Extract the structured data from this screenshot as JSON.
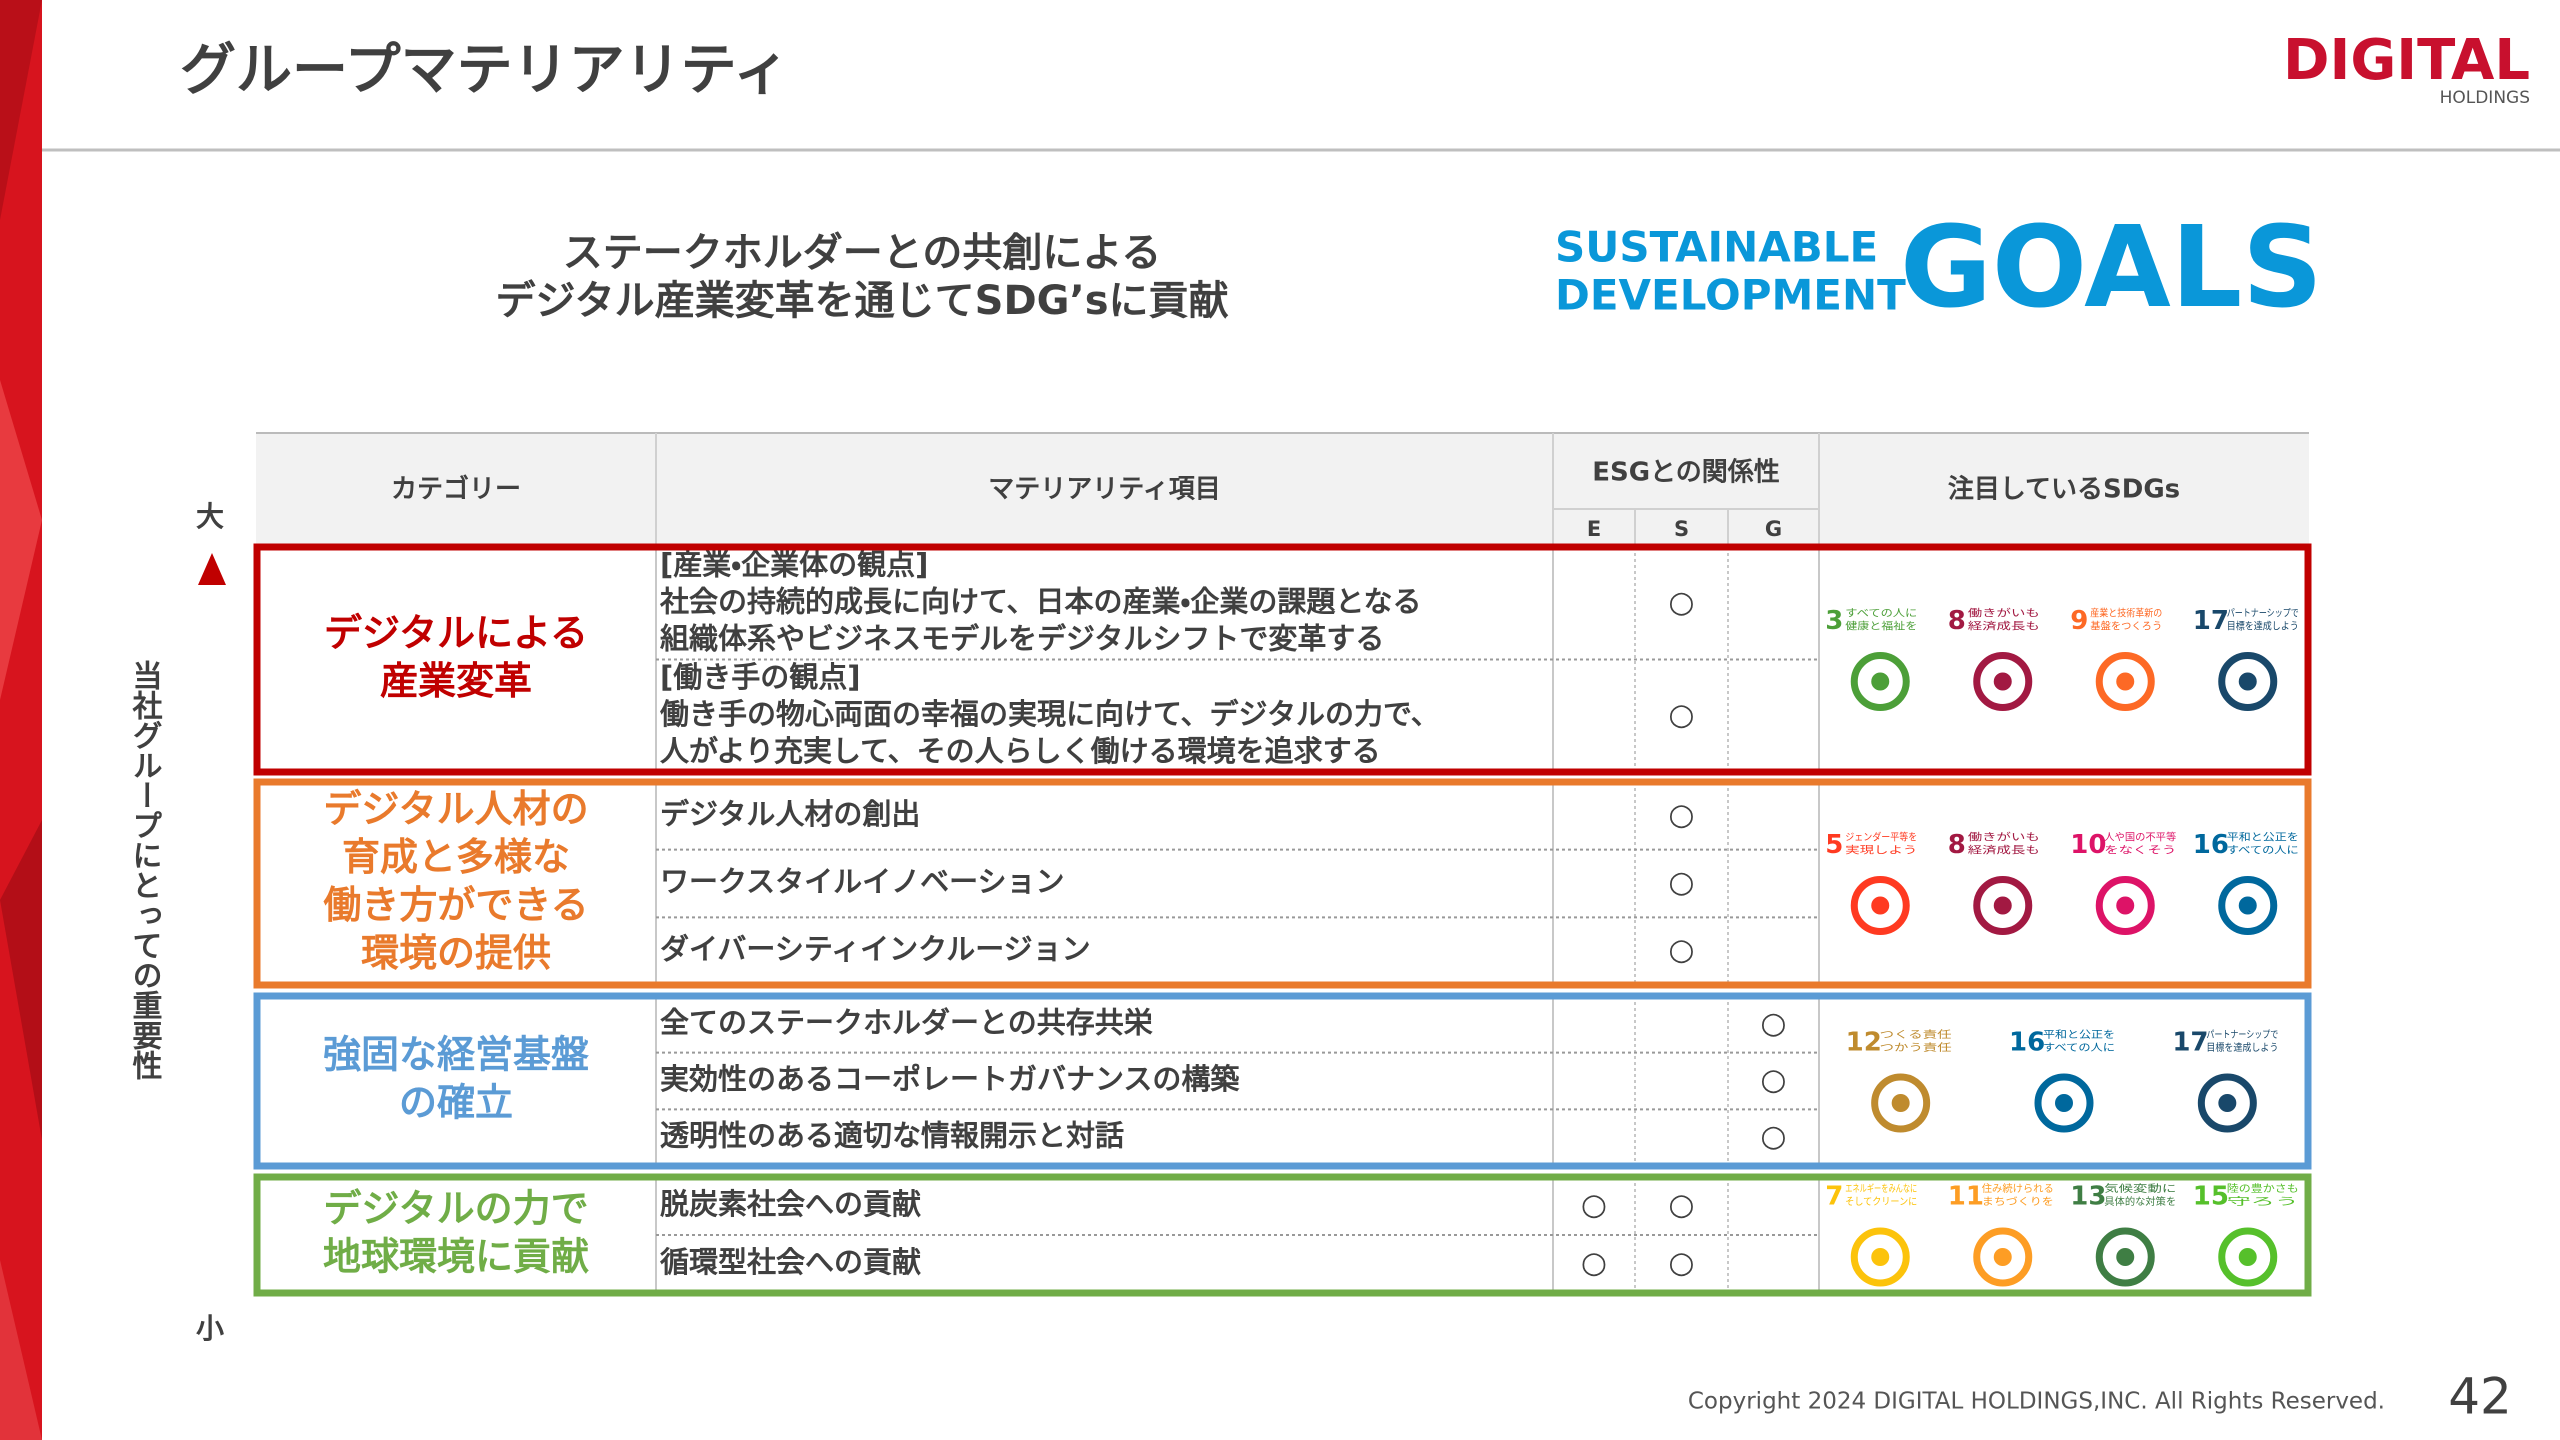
{
  "header": {
    "title": "グループマテリアリティ",
    "logo": {
      "name": "DIGITAL",
      "sub": "HOLDINGS"
    }
  },
  "tagline": [
    "ステークホルダーとの共創による",
    "デジタル産業変革を通じてSDG’sに貢献"
  ],
  "sdgs_logo": {
    "line1": "SUSTAINABLE",
    "line2": "DEVELOPMENT",
    "goals": "GOALS"
  },
  "axis": {
    "label": "当社グループにとっての重要性",
    "high": "大",
    "low": "小"
  },
  "table": {
    "headers": {
      "category": "カテゴリー",
      "item": "マテリアリティ項目",
      "esg": "ESGとの関係性",
      "esg_columns": [
        "E",
        "S",
        "G"
      ],
      "sdgs": "注目しているSDGs"
    },
    "mark": "○",
    "groups": [
      {
        "category": [
          "デジタルによる",
          "産業変革"
        ],
        "color": "#c00000",
        "items": [
          {
            "lines": [
              "[産業・企業体の観点]",
              "社会の持続的成長に向けて、日本の産業・企業の課題となる",
              "組織体系やビジネスモデルをデジタルシフトで変革する"
            ],
            "esg": [
              "S"
            ]
          },
          {
            "lines": [
              "[働き手の観点]",
              "働き手の物心両面の幸福の実現に向けて、デジタルの力で、",
              "人がより充実して、その人らしく働ける環境を追求する"
            ],
            "esg": [
              "S"
            ]
          }
        ],
        "sdgs": [
          {
            "number": "3",
            "label": [
              "すべての人に",
              "健康と福祉を"
            ],
            "color": "#4c9f38"
          },
          {
            "number": "8",
            "label": [
              "働きがいも",
              "経済成長も"
            ],
            "color": "#a21942"
          },
          {
            "number": "9",
            "label": [
              "産業と技術革新の",
              "基盤をつくろう"
            ],
            "color": "#fd6925"
          },
          {
            "number": "17",
            "label": [
              "パートナーシップで",
              "目標を達成しよう"
            ],
            "color": "#19486a"
          }
        ]
      },
      {
        "category": [
          "デジタル人材の",
          "育成と多様な",
          "働き方ができる",
          "環境の提供"
        ],
        "color": "#e97a2c",
        "items": [
          {
            "lines": [
              "デジタル人材の創出"
            ],
            "esg": [
              "S"
            ]
          },
          {
            "lines": [
              "ワークスタイルイノベーション"
            ],
            "esg": [
              "S"
            ]
          },
          {
            "lines": [
              "ダイバーシティインクルージョン"
            ],
            "esg": [
              "S"
            ]
          }
        ],
        "sdgs": [
          {
            "number": "5",
            "label": [
              "ジェンダー平等を",
              "実現しよう"
            ],
            "color": "#ff3a21"
          },
          {
            "number": "8",
            "label": [
              "働きがいも",
              "経済成長も"
            ],
            "color": "#a21942"
          },
          {
            "number": "10",
            "label": [
              "人や国の不平等",
              "をなくそう"
            ],
            "color": "#dd1367"
          },
          {
            "number": "16",
            "label": [
              "平和と公正を",
              "すべての人に"
            ],
            "color": "#00689d"
          }
        ]
      },
      {
        "category": [
          "強固な経営基盤",
          "の確立"
        ],
        "color": "#5b9bd5",
        "items": [
          {
            "lines": [
              "全てのステークホルダーとの共存共栄"
            ],
            "esg": [
              "G"
            ]
          },
          {
            "lines": [
              "実効性のあるコーポレートガバナンスの構築"
            ],
            "esg": [
              "G"
            ]
          },
          {
            "lines": [
              "透明性のある適切な情報開示と対話"
            ],
            "esg": [
              "G"
            ]
          }
        ],
        "sdgs": [
          {
            "number": "12",
            "label": [
              "つくる責任",
              "つかう責任"
            ],
            "color": "#bf8b2e"
          },
          {
            "number": "16",
            "label": [
              "平和と公正を",
              "すべての人に"
            ],
            "color": "#00689d"
          },
          {
            "number": "17",
            "label": [
              "パートナーシップで",
              "目標を達成しよう"
            ],
            "color": "#19486a"
          }
        ]
      },
      {
        "category": [
          "デジタルの力で",
          "地球環境に貢献"
        ],
        "color": "#70ad47",
        "items": [
          {
            "lines": [
              "脱炭素社会への貢献"
            ],
            "esg": [
              "E",
              "S"
            ]
          },
          {
            "lines": [
              "循環型社会への貢献"
            ],
            "esg": [
              "E",
              "S"
            ]
          }
        ],
        "sdgs": [
          {
            "number": "7",
            "label": [
              "エネルギーをみんなに",
              "そしてクリーンに"
            ],
            "color": "#fcc30b"
          },
          {
            "number": "11",
            "label": [
              "住み続けられる",
              "まちづくりを"
            ],
            "color": "#fd9d24"
          },
          {
            "number": "13",
            "label": [
              "気候変動に",
              "具体的な対策を"
            ],
            "color": "#3f7e44"
          },
          {
            "number": "15",
            "label": [
              "陸の豊かさも",
              "守ろう"
            ],
            "color": "#56c02b"
          }
        ]
      }
    ]
  },
  "footer": {
    "copyright": "Copyright 2024 DIGITAL HOLDINGS,INC. All Rights Reserved.",
    "page": "42"
  }
}
